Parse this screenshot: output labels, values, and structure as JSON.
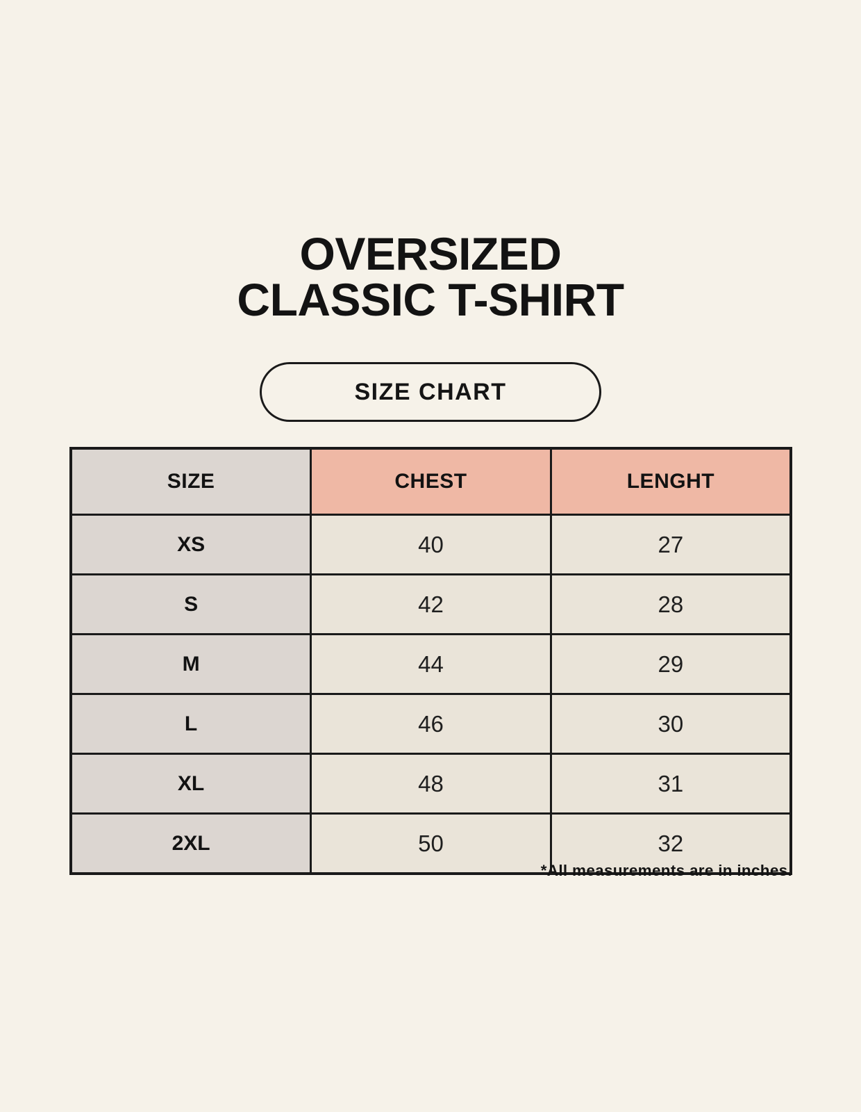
{
  "header": {
    "title_line1": "OVERSIZED",
    "title_line2": "CLASSIC T-SHIRT",
    "badge_label": "SIZE CHART"
  },
  "footnote": "*All measurements are in inches.",
  "colors": {
    "page_background": "#f6f2e9",
    "size_column_bg": "#dcd6d1",
    "header_accent_bg": "#efb8a5",
    "value_cell_bg": "#eae4d9",
    "border": "#1a1a1a",
    "text": "#121212"
  },
  "chart_data": {
    "type": "table",
    "title": "OVERSIZED CLASSIC T-SHIRT",
    "subtitle": "SIZE CHART",
    "columns": [
      "SIZE",
      "CHEST",
      "LENGHT"
    ],
    "rows": [
      [
        "XS",
        40,
        27
      ],
      [
        "S",
        42,
        28
      ],
      [
        "M",
        44,
        29
      ],
      [
        "L",
        46,
        30
      ],
      [
        "XL",
        48,
        31
      ],
      [
        "2XL",
        50,
        32
      ]
    ],
    "note": "*All measurements are in inches.",
    "units": "inches"
  }
}
